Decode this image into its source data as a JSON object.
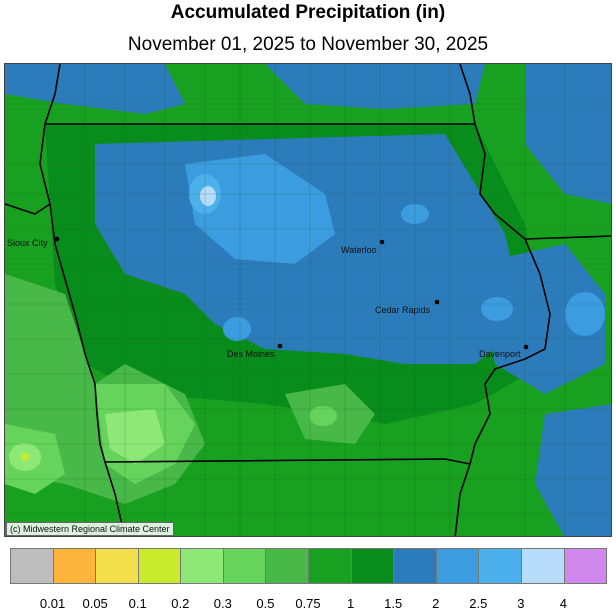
{
  "header": {
    "title": "Accumulated Precipitation (in)",
    "subtitle": "November 01, 2025 to November 30, 2025"
  },
  "map": {
    "cities": [
      {
        "name": "Sioux City"
      },
      {
        "name": "Waterloo"
      },
      {
        "name": "Cedar Rapids"
      },
      {
        "name": "Des Moines"
      },
      {
        "name": "Davenport"
      }
    ],
    "credit": "(c) Midwestern Regional Climate Center"
  },
  "legend": {
    "colors": [
      "#bdbdbd",
      "#fcb43c",
      "#f4e04c",
      "#c8ec2c",
      "#8ee878",
      "#66d45c",
      "#48b848",
      "#18a020",
      "#088c1c",
      "#2c7cbc",
      "#3c9ce0",
      "#4cb0ec",
      "#b8dcfc",
      "#d088ec"
    ],
    "labels": [
      "0.01",
      "0.05",
      "0.1",
      "0.2",
      "0.3",
      "0.5",
      "0.75",
      "1",
      "1.5",
      "2",
      "2.5",
      "3",
      "4"
    ]
  }
}
